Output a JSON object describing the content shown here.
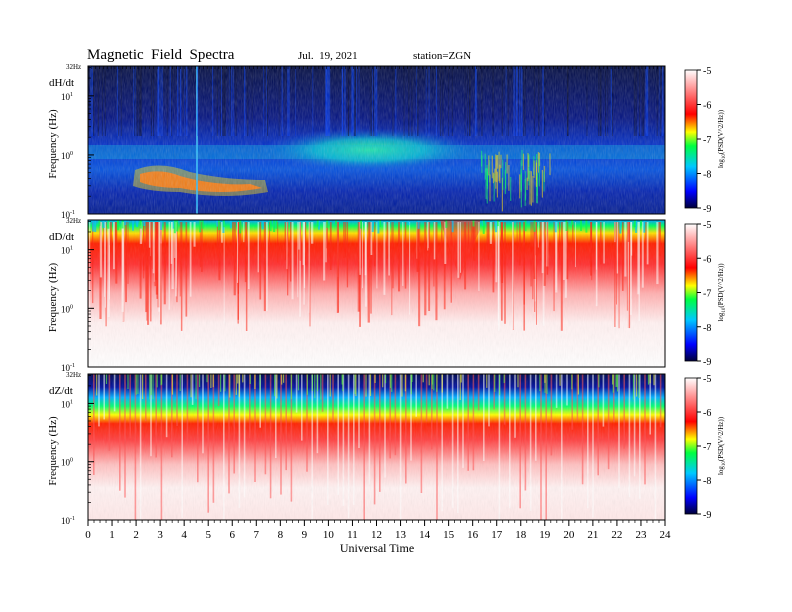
{
  "header": {
    "title": "Magnetic  Field  Spectra",
    "date": "Jul.  19, 2021",
    "station": "station=ZGN"
  },
  "chart_data": {
    "type": "heatmap",
    "xlabel": "Universal Time",
    "x_ticks": [
      "0",
      "1",
      "2",
      "3",
      "4",
      "5",
      "6",
      "7",
      "8",
      "9",
      "10",
      "11",
      "12",
      "13",
      "14",
      "15",
      "16",
      "17",
      "18",
      "19",
      "20",
      "21",
      "22",
      "23",
      "24"
    ],
    "xlim": [
      0,
      24
    ],
    "ylim_label_top": "32Hz",
    "y_ticks": [
      {
        "base": "10",
        "exp": "1",
        "value": 10
      },
      {
        "base": "10",
        "exp": "0",
        "value": 1
      },
      {
        "base": "10",
        "exp": "-1",
        "value": 0.1
      }
    ],
    "y_scale": "log",
    "ylim": [
      0.1,
      32
    ],
    "colorbar": {
      "label": "log10(PSD(V^2/Hz))",
      "label_text": "log",
      "label_sub": "10",
      "label_rest": "(PSD(V^2/Hz))",
      "ticks": [
        "-5",
        "-6",
        "-7",
        "-8",
        "-9"
      ],
      "range": [
        -9,
        -5
      ],
      "colors": [
        "#0000ff",
        "#00ff00",
        "#ffff00",
        "#ff0000",
        "#ffffff"
      ]
    },
    "panels": [
      {
        "component": "dH/dt",
        "ylabel": "Frequency  (Hz)",
        "background_level": -8.8,
        "features": [
          {
            "desc": "broad green band",
            "t_start": 8.5,
            "t_end": 14,
            "f_center": 1.0,
            "level": -7.2
          },
          {
            "desc": "red pulsation event",
            "t_start": 2.3,
            "t_end": 7.2,
            "f_center": 0.3,
            "level": -6.2
          },
          {
            "desc": "spike",
            "t": 4.6,
            "level": -7.5
          }
        ]
      },
      {
        "component": "dD/dt",
        "ylabel": "Frequency  (Hz)",
        "background_level": -5,
        "features": [
          {
            "desc": "green-yellow band near top",
            "f_center": 20,
            "level": -6.8
          }
        ]
      },
      {
        "component": "dZ/dt",
        "ylabel": "Frequency  (Hz)",
        "background_level": -5,
        "features": [
          {
            "desc": "dark blue top band",
            "f_center": 28,
            "level": -8.8
          },
          {
            "desc": "green band",
            "f_center": 12,
            "level": -7
          }
        ]
      }
    ]
  }
}
